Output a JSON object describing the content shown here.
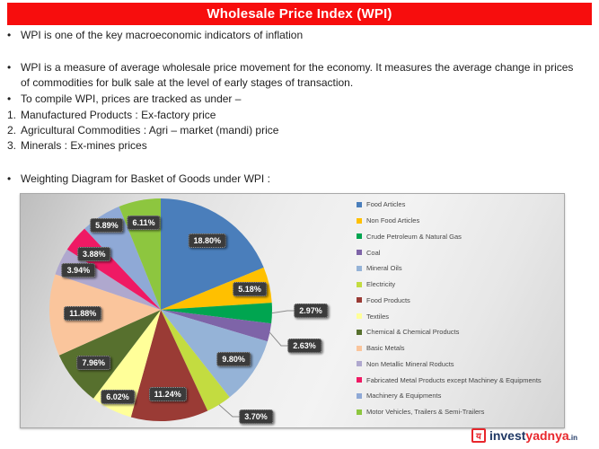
{
  "header": {
    "title": "Wholesale Price Index (WPI)",
    "bar_color": "#F70D0D"
  },
  "content": {
    "items": [
      {
        "marker": "•",
        "text": "WPI is one of the key macroeconomic indicators of inflation"
      },
      {
        "marker": "•",
        "text": "WPI is a measure of average wholesale price movement for the economy. It measures the average change in prices of commodities for bulk sale at the level of early stages of transaction."
      },
      {
        "marker": "•",
        "text": "To compile WPI, prices are tracked as under –"
      },
      {
        "marker": "1.",
        "text": "Manufactured Products : Ex-factory price"
      },
      {
        "marker": "2.",
        "text": "Agricultural Commodities : Agri – market (mandi) price"
      },
      {
        "marker": "3.",
        "text": "Minerals : Ex-mines prices"
      },
      {
        "marker": "•",
        "text": "Weighting Diagram for Basket of Goods under WPI :"
      }
    ]
  },
  "chart_data": {
    "type": "pie",
    "title": "Weighting Diagram for Basket of Goods under WPI",
    "legend_position": "right",
    "start_angle_deg": 0,
    "direction": "clockwise",
    "categories": [
      "Food Articles",
      "Non Food Articles",
      "Crude Petroleum & Natural Gas",
      "Coal",
      "Mineral Oils",
      "Electricity",
      "Food Products",
      "Textiles",
      "Chemical & Chemical Products",
      "Basic Metals",
      "Non Metallic Mineral Roducts",
      "Fabricated Metal Products except Machiney & Equipments",
      "Machinery & Equipments",
      "Motor Vehicles, Trailers & Semi-Trailers"
    ],
    "values": [
      18.8,
      5.18,
      2.97,
      2.63,
      9.8,
      3.7,
      11.24,
      6.02,
      7.96,
      11.88,
      3.94,
      3.88,
      5.89,
      6.11
    ],
    "labels": [
      "18.80%",
      "5.18%",
      "2.97%",
      "2.63%",
      "9.80%",
      "3.70%",
      "11.24%",
      "6.02%",
      "7.96%",
      "11.88%",
      "3.94%",
      "3.88%",
      "5.89%",
      "6.11%"
    ],
    "colors": [
      "#4A7EBB",
      "#FFC000",
      "#00A550",
      "#7E64A8",
      "#95B3D7",
      "#C3DC40",
      "#9A3B35",
      "#FFFF99",
      "#57702E",
      "#FAC59C",
      "#AFA8CE",
      "#EF1A64",
      "#8FA9D6",
      "#8DC63F"
    ]
  },
  "footer": {
    "logo_glyph": "य",
    "brand_invest": "invest",
    "brand_yadnya": "yadnya",
    "brand_tld": ".in"
  }
}
